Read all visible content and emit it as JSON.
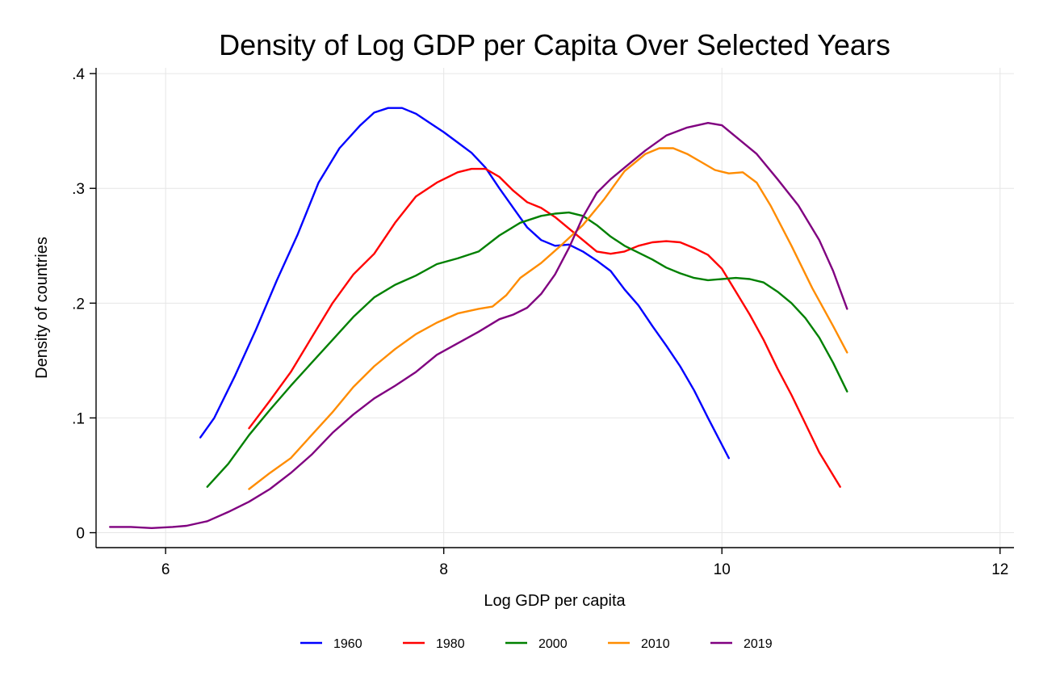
{
  "chart_data": {
    "type": "line",
    "title": "Density of Log GDP per Capita Over Selected Years",
    "xlabel": "Log GDP per capita",
    "ylabel": "Density of countries",
    "xlim": [
      5.5,
      12.1
    ],
    "ylim": [
      -0.013,
      0.405
    ],
    "xticks": [
      {
        "value": 6,
        "label": "6"
      },
      {
        "value": 8,
        "label": "8"
      },
      {
        "value": 10,
        "label": "10"
      },
      {
        "value": 12,
        "label": "12"
      }
    ],
    "yticks": [
      {
        "value": 0,
        "label": "0"
      },
      {
        "value": 0.1,
        "label": ".1"
      },
      {
        "value": 0.2,
        "label": ".2"
      },
      {
        "value": 0.3,
        "label": ".3"
      },
      {
        "value": 0.4,
        "label": ".4"
      }
    ],
    "grid": true,
    "legend_position": "bottom",
    "series": [
      {
        "name": "1960",
        "color": "#0000ff",
        "x": [
          6.25,
          6.35,
          6.5,
          6.65,
          6.8,
          6.95,
          7.1,
          7.25,
          7.4,
          7.5,
          7.6,
          7.7,
          7.8,
          7.9,
          8.0,
          8.1,
          8.2,
          8.3,
          8.4,
          8.5,
          8.6,
          8.7,
          8.8,
          8.9,
          9.0,
          9.1,
          9.2,
          9.3,
          9.4,
          9.5,
          9.6,
          9.7,
          9.8,
          9.9,
          10.05
        ],
        "y": [
          0.083,
          0.1,
          0.137,
          0.177,
          0.22,
          0.26,
          0.305,
          0.335,
          0.355,
          0.366,
          0.37,
          0.37,
          0.365,
          0.357,
          0.349,
          0.34,
          0.331,
          0.318,
          0.3,
          0.283,
          0.266,
          0.255,
          0.25,
          0.251,
          0.245,
          0.237,
          0.228,
          0.212,
          0.198,
          0.18,
          0.163,
          0.145,
          0.124,
          0.1,
          0.065
        ]
      },
      {
        "name": "1980",
        "color": "#ff0000",
        "x": [
          6.6,
          6.75,
          6.9,
          7.05,
          7.2,
          7.35,
          7.5,
          7.65,
          7.8,
          7.95,
          8.1,
          8.2,
          8.3,
          8.4,
          8.5,
          8.6,
          8.7,
          8.8,
          8.9,
          9.0,
          9.1,
          9.2,
          9.3,
          9.4,
          9.5,
          9.6,
          9.7,
          9.8,
          9.9,
          10.0,
          10.1,
          10.2,
          10.3,
          10.4,
          10.5,
          10.6,
          10.7,
          10.85
        ],
        "y": [
          0.091,
          0.115,
          0.14,
          0.17,
          0.2,
          0.225,
          0.243,
          0.27,
          0.293,
          0.305,
          0.314,
          0.317,
          0.317,
          0.31,
          0.298,
          0.288,
          0.283,
          0.275,
          0.265,
          0.255,
          0.245,
          0.243,
          0.245,
          0.25,
          0.253,
          0.254,
          0.253,
          0.248,
          0.242,
          0.23,
          0.21,
          0.19,
          0.168,
          0.143,
          0.12,
          0.095,
          0.07,
          0.04
        ]
      },
      {
        "name": "2000",
        "color": "#008000",
        "x": [
          6.3,
          6.45,
          6.6,
          6.75,
          6.9,
          7.05,
          7.2,
          7.35,
          7.5,
          7.65,
          7.8,
          7.95,
          8.1,
          8.25,
          8.4,
          8.55,
          8.7,
          8.8,
          8.9,
          9.0,
          9.1,
          9.2,
          9.3,
          9.4,
          9.5,
          9.6,
          9.7,
          9.8,
          9.9,
          10.0,
          10.1,
          10.2,
          10.3,
          10.4,
          10.5,
          10.6,
          10.7,
          10.8,
          10.9
        ],
        "y": [
          0.04,
          0.06,
          0.085,
          0.107,
          0.128,
          0.148,
          0.168,
          0.188,
          0.205,
          0.216,
          0.224,
          0.234,
          0.239,
          0.245,
          0.259,
          0.27,
          0.276,
          0.278,
          0.279,
          0.276,
          0.268,
          0.258,
          0.25,
          0.244,
          0.238,
          0.231,
          0.226,
          0.222,
          0.22,
          0.221,
          0.222,
          0.221,
          0.218,
          0.21,
          0.2,
          0.187,
          0.17,
          0.148,
          0.123
        ]
      },
      {
        "name": "2010",
        "color": "#ff8c00",
        "x": [
          6.6,
          6.75,
          6.9,
          7.05,
          7.2,
          7.35,
          7.5,
          7.65,
          7.8,
          7.95,
          8.1,
          8.25,
          8.35,
          8.45,
          8.55,
          8.7,
          8.85,
          9.0,
          9.15,
          9.3,
          9.45,
          9.55,
          9.65,
          9.75,
          9.85,
          9.95,
          10.05,
          10.15,
          10.25,
          10.35,
          10.5,
          10.65,
          10.8,
          10.9
        ],
        "y": [
          0.038,
          0.052,
          0.065,
          0.085,
          0.105,
          0.127,
          0.145,
          0.16,
          0.173,
          0.183,
          0.191,
          0.195,
          0.197,
          0.207,
          0.222,
          0.235,
          0.251,
          0.268,
          0.29,
          0.315,
          0.33,
          0.335,
          0.335,
          0.33,
          0.323,
          0.316,
          0.313,
          0.314,
          0.305,
          0.285,
          0.25,
          0.213,
          0.18,
          0.157
        ]
      },
      {
        "name": "2019",
        "color": "#800080",
        "x": [
          5.6,
          5.75,
          5.9,
          6.05,
          6.15,
          6.3,
          6.45,
          6.6,
          6.75,
          6.9,
          7.05,
          7.2,
          7.35,
          7.5,
          7.65,
          7.8,
          7.95,
          8.1,
          8.25,
          8.4,
          8.5,
          8.6,
          8.7,
          8.8,
          8.9,
          9.0,
          9.1,
          9.2,
          9.3,
          9.45,
          9.6,
          9.75,
          9.9,
          10.0,
          10.1,
          10.25,
          10.4,
          10.55,
          10.7,
          10.8,
          10.9
        ],
        "y": [
          0.005,
          0.005,
          0.004,
          0.005,
          0.006,
          0.01,
          0.018,
          0.027,
          0.038,
          0.052,
          0.068,
          0.087,
          0.103,
          0.117,
          0.128,
          0.14,
          0.155,
          0.165,
          0.175,
          0.186,
          0.19,
          0.196,
          0.208,
          0.225,
          0.248,
          0.275,
          0.296,
          0.308,
          0.318,
          0.333,
          0.346,
          0.353,
          0.357,
          0.355,
          0.345,
          0.33,
          0.308,
          0.285,
          0.255,
          0.228,
          0.195
        ]
      }
    ]
  }
}
